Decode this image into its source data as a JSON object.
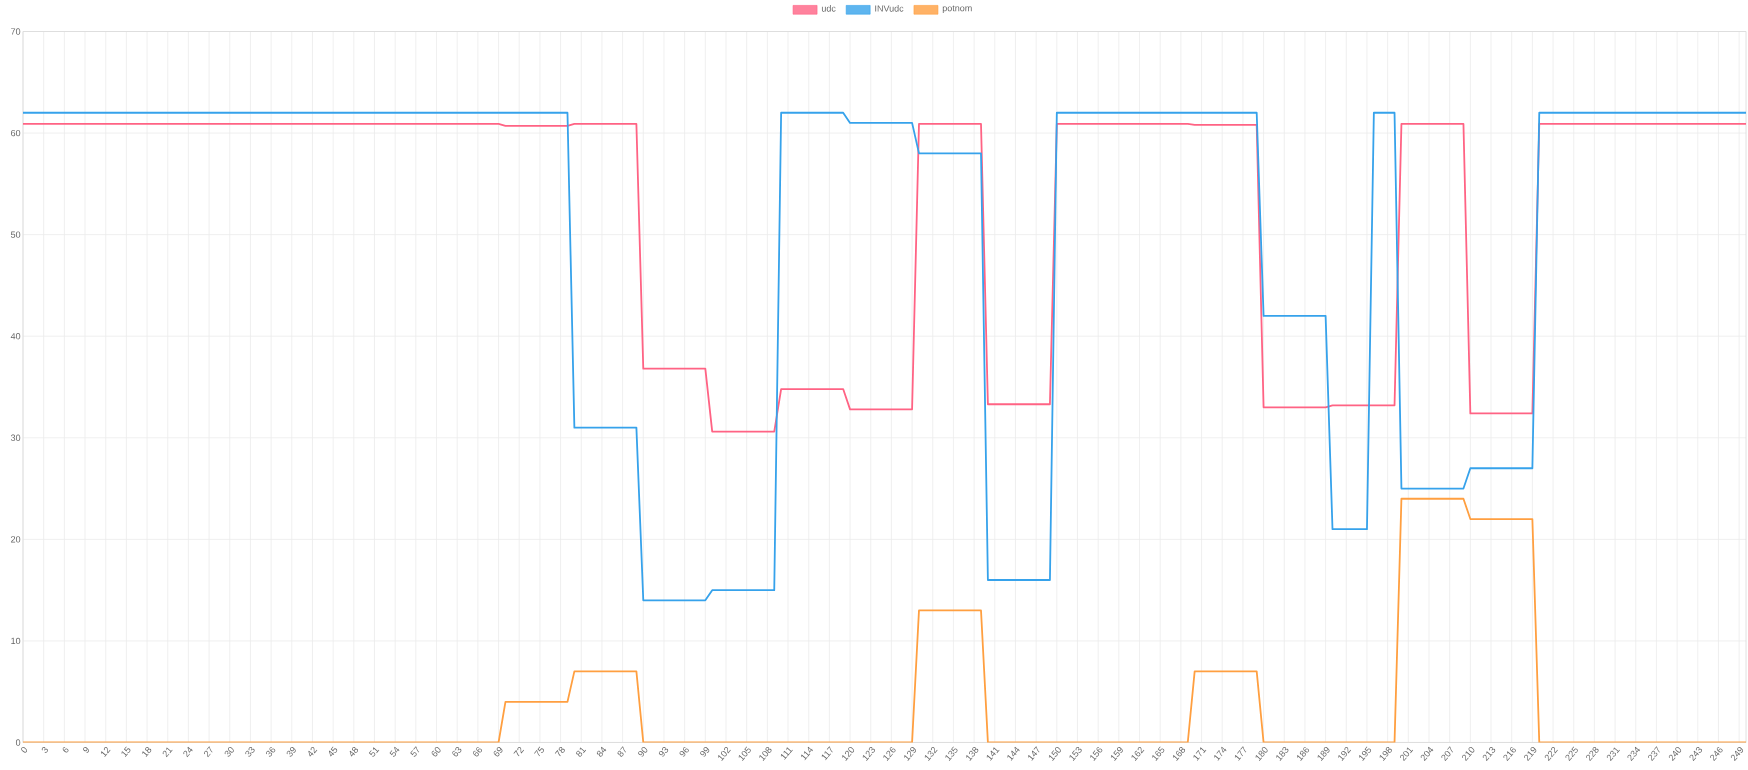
{
  "chart_data": {
    "type": "line",
    "xlim": [
      0,
      250
    ],
    "xticks": [
      0,
      3,
      6,
      9,
      12,
      15,
      18,
      21,
      24,
      27,
      30,
      33,
      36,
      39,
      42,
      45,
      48,
      51,
      54,
      57,
      60,
      63,
      66,
      69,
      72,
      75,
      78,
      81,
      84,
      87,
      90,
      93,
      96,
      99,
      102,
      105,
      108,
      111,
      114,
      117,
      120,
      123,
      126,
      129,
      132,
      135,
      138,
      141,
      144,
      147,
      150,
      153,
      156,
      159,
      162,
      165,
      168,
      171,
      174,
      177,
      180,
      183,
      186,
      189,
      192,
      195,
      198,
      201,
      204,
      207,
      210,
      213,
      216,
      219,
      222,
      225,
      228,
      231,
      234,
      237,
      240,
      243,
      246,
      249
    ],
    "ylim": [
      0,
      70
    ],
    "yticks": [
      0,
      10,
      20,
      30,
      40,
      50,
      60,
      70
    ],
    "grid": true,
    "legend": "top",
    "marker": "none",
    "line_style": "solid",
    "series": [
      {
        "name": "udc",
        "color": "#ff6384",
        "x": [
          0,
          69,
          70,
          79,
          80,
          89,
          90,
          99,
          100,
          109,
          110,
          119,
          120,
          129,
          130,
          139,
          140,
          149,
          150,
          169,
          170,
          179,
          180,
          189,
          190,
          199,
          200,
          209,
          210,
          219,
          220,
          250
        ],
        "values": [
          60.9,
          60.9,
          60.7,
          60.7,
          60.9,
          60.9,
          36.8,
          36.8,
          30.6,
          30.6,
          34.8,
          34.8,
          32.8,
          32.8,
          60.9,
          60.9,
          33.3,
          33.3,
          60.9,
          60.9,
          60.8,
          60.8,
          33.0,
          33.0,
          33.2,
          33.2,
          60.9,
          60.9,
          32.4,
          32.4,
          60.9,
          60.9
        ]
      },
      {
        "name": "INVudc",
        "color": "#36a2eb",
        "x": [
          0,
          79,
          80,
          89,
          90,
          99,
          100,
          109,
          110,
          119,
          120,
          129,
          130,
          139,
          140,
          149,
          150,
          179,
          180,
          189,
          190,
          195,
          196,
          199,
          200,
          209,
          210,
          219,
          220,
          250
        ],
        "values": [
          62,
          62,
          31,
          31,
          14,
          14,
          15,
          15,
          62,
          62,
          61,
          61,
          58,
          58,
          16,
          16,
          62,
          62,
          42,
          42,
          21,
          21,
          62,
          62,
          25,
          25,
          27,
          27,
          62,
          62
        ]
      },
      {
        "name": "potnom",
        "color": "#ff9f40",
        "x": [
          0,
          69,
          70,
          79,
          80,
          89,
          90,
          129,
          130,
          139,
          140,
          169,
          170,
          179,
          180,
          199,
          200,
          209,
          210,
          219,
          220,
          250
        ],
        "values": [
          0,
          0,
          4,
          4,
          7,
          7,
          0,
          0,
          13,
          13,
          0,
          0,
          7,
          7,
          0,
          0,
          24,
          24,
          22,
          22,
          0,
          0
        ]
      }
    ]
  }
}
